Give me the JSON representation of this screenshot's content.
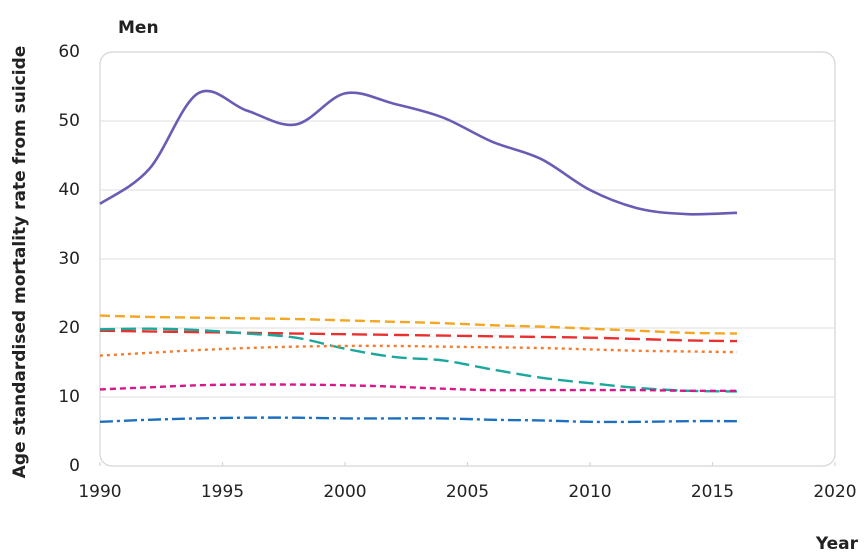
{
  "chart_data": {
    "type": "line",
    "title": "Men",
    "ylabel": "Age standardised mortality rate from suicide",
    "xlabel": "Year",
    "x": [
      1990,
      1992,
      1994,
      1996,
      1998,
      2000,
      2002,
      2004,
      2006,
      2008,
      2010,
      2012,
      2014,
      2016
    ],
    "series": [
      {
        "color": "#6b5bb5",
        "style": "solid",
        "values": [
          38,
          43,
          54,
          51.5,
          49.5,
          54,
          52.5,
          50.5,
          47,
          44.5,
          40,
          37.3,
          36.5,
          36.7
        ]
      },
      {
        "color": "#f5a623",
        "style": "dashed",
        "values": [
          21.8,
          21.6,
          21.5,
          21.4,
          21.3,
          21.1,
          20.9,
          20.7,
          20.4,
          20.2,
          19.9,
          19.6,
          19.3,
          19.2
        ]
      },
      {
        "color": "#e8312f",
        "style": "long-dashed",
        "values": [
          19.6,
          19.5,
          19.4,
          19.3,
          19.2,
          19.1,
          19,
          18.9,
          18.8,
          18.7,
          18.6,
          18.4,
          18.2,
          18.1
        ]
      },
      {
        "color": "#1aa79c",
        "style": "long-dashed",
        "values": [
          19.8,
          19.9,
          19.7,
          19.2,
          18.6,
          17,
          15.8,
          15.3,
          14,
          12.8,
          12,
          11.3,
          10.9,
          10.8
        ]
      },
      {
        "color": "#f47c30",
        "style": "dotted",
        "values": [
          16,
          16.4,
          16.8,
          17.1,
          17.3,
          17.4,
          17.4,
          17.3,
          17.2,
          17.1,
          16.9,
          16.7,
          16.6,
          16.5
        ]
      },
      {
        "color": "#d6168b",
        "style": "short-dashed",
        "values": [
          11.1,
          11.4,
          11.7,
          11.8,
          11.8,
          11.7,
          11.5,
          11.2,
          11,
          11,
          11,
          11,
          10.9,
          10.9
        ]
      },
      {
        "color": "#1f6fbf",
        "style": "dash-dot",
        "values": [
          6.4,
          6.7,
          6.9,
          7,
          7,
          6.9,
          6.9,
          6.9,
          6.7,
          6.6,
          6.4,
          6.4,
          6.5,
          6.5
        ]
      }
    ],
    "xlim": [
      1990,
      2020
    ],
    "xticks": [
      1990,
      1995,
      2000,
      2005,
      2010,
      2015,
      2020
    ],
    "ylim": [
      0,
      60
    ],
    "yticks": [
      0,
      10,
      20,
      30,
      40,
      50,
      60
    ],
    "grid": true
  }
}
